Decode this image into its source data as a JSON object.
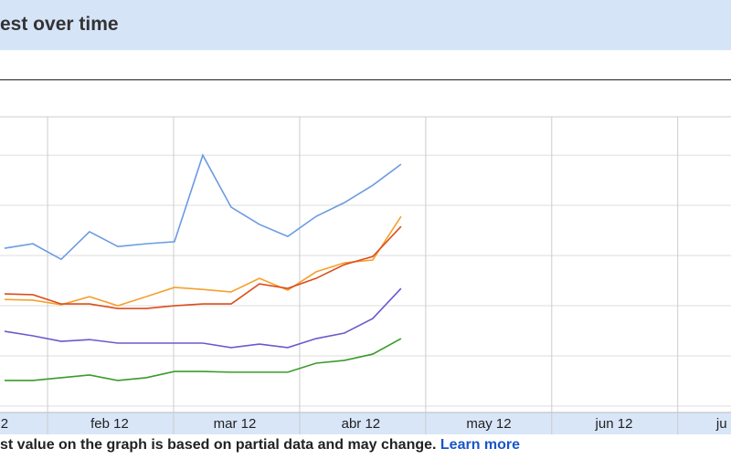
{
  "header": {
    "title": "est over time"
  },
  "chart_data": {
    "type": "line",
    "x": [
      0,
      1,
      2,
      3,
      4,
      5,
      6,
      7,
      8,
      9,
      10,
      11,
      12,
      13,
      14
    ],
    "xlim": [
      -0.16,
      25.65
    ],
    "xticks": [
      {
        "value": 0,
        "label": "2"
      },
      {
        "value": 3.71,
        "label": "feb 12"
      },
      {
        "value": 8.13,
        "label": "mar 12"
      },
      {
        "value": 12.58,
        "label": "abr 12"
      },
      {
        "value": 17.1,
        "label": "may 12"
      },
      {
        "value": 21.52,
        "label": "jun 12"
      },
      {
        "value": 25.32,
        "label": "ju"
      }
    ],
    "xgrid": [
      1.52,
      5.97,
      10.42,
      14.87,
      19.32,
      23.77
    ],
    "ylim": [
      0,
      115.3
    ],
    "yticks": [
      0,
      20,
      40,
      60,
      80,
      100
    ],
    "grid": true,
    "series": [
      {
        "color": "#6b9be3",
        "values": [
          62.9,
          64.7,
          58.5,
          69.5,
          63.6,
          64.7,
          65.5,
          100,
          79.3,
          72.4,
          67.6,
          75.6,
          81.1,
          88,
          96.4
        ]
      },
      {
        "color": "#f4a12d",
        "values": [
          42.5,
          42.2,
          40.4,
          43.6,
          40,
          43.6,
          47.3,
          46.5,
          45.5,
          50.9,
          46.2,
          53.5,
          57.1,
          58.2,
          75.6
        ]
      },
      {
        "color": "#dc4c1c",
        "values": [
          44.7,
          44.4,
          40.7,
          40.7,
          38.9,
          38.9,
          40,
          40.7,
          40.7,
          48.7,
          46.9,
          50.9,
          56.4,
          59.6,
          71.6
        ]
      },
      {
        "color": "#6a5acd",
        "values": [
          29.8,
          28,
          25.8,
          26.5,
          25.1,
          25.1,
          25.1,
          25.1,
          23.3,
          24.7,
          23.3,
          26.9,
          29.1,
          34.9,
          46.9
        ]
      },
      {
        "color": "#3a9a2a",
        "values": [
          10.2,
          10.2,
          11.3,
          12.4,
          10.2,
          11.3,
          13.8,
          13.8,
          13.5,
          13.5,
          13.5,
          17.1,
          18.2,
          20.7,
          26.9
        ]
      }
    ]
  },
  "footer": {
    "note": "st value on the graph is based on partial data and may change.",
    "link": "Learn more"
  }
}
